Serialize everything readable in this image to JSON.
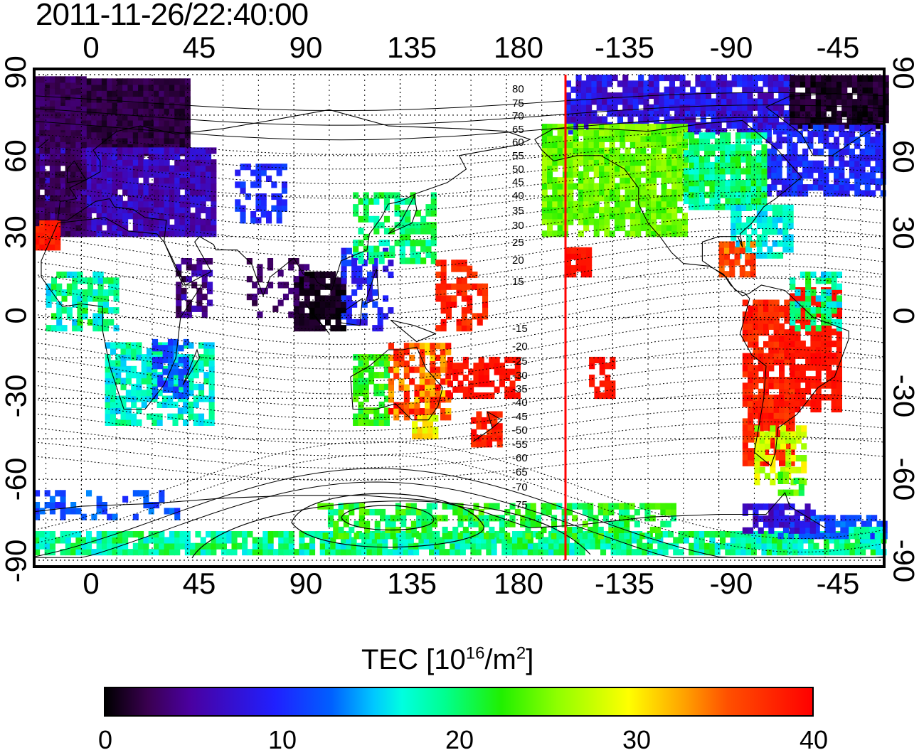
{
  "timestamp": "2011-11-26/22:40:00",
  "map": {
    "projection": "equirectangular",
    "lon_labels": [
      "0",
      "45",
      "90",
      "135",
      "180",
      "-135",
      "-90",
      "-45"
    ],
    "lat_labels": [
      "90",
      "60",
      "30",
      "0",
      "-30",
      "-60",
      "-90"
    ],
    "contour_labels": [
      "80",
      "75",
      "70",
      "65",
      "60",
      "55",
      "50",
      "45",
      "40",
      "35",
      "30",
      "25",
      "20",
      "15",
      "-15",
      "-20",
      "-25",
      "-30",
      "-35",
      "-40",
      "-45",
      "-50",
      "-55",
      "-60",
      "-65",
      "-70",
      "-75"
    ],
    "terminator_longitude": -158,
    "grid": "dotted",
    "colors": {
      "terminator": "#ff0000",
      "coast": "#000000",
      "contour": "#000000"
    }
  },
  "colorbar": {
    "title_prefix": "TEC  [10",
    "title_exp": "16",
    "title_mid": "/m",
    "title_exp2": "2",
    "title_suffix": "]",
    "ticks": [
      "0",
      "10",
      "20",
      "30",
      "40"
    ],
    "min": 0,
    "max": 40,
    "colors": [
      "#000000",
      "#4a00a0",
      "#2020ff",
      "#00c8ff",
      "#00ff90",
      "#20f000",
      "#ffff00",
      "#ffa000",
      "#ff0000"
    ]
  }
}
